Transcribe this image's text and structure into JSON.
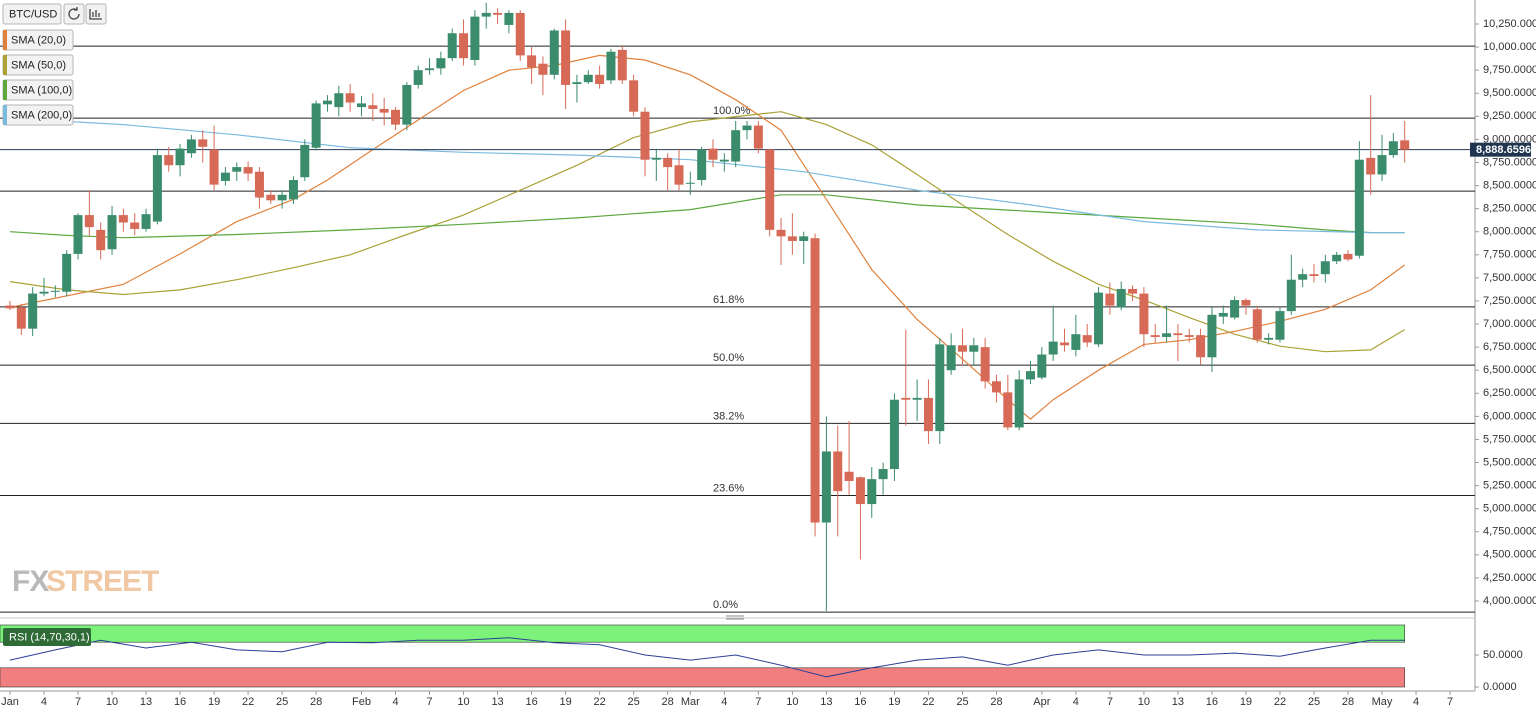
{
  "chart_data": [
    {
      "type": "candlestick",
      "title": "BTC/USD",
      "up_color": "#3b8c6c",
      "down_color": "#d76a56",
      "xlim": [
        -0.88,
        129.2
      ],
      "xticks": [
        {
          "value": 0,
          "label": "Jan"
        },
        {
          "value": 3,
          "label": "4"
        },
        {
          "value": 6,
          "label": "7"
        },
        {
          "value": 9,
          "label": "10"
        },
        {
          "value": 12,
          "label": "13"
        },
        {
          "value": 15,
          "label": "16"
        },
        {
          "value": 18,
          "label": "19"
        },
        {
          "value": 21,
          "label": "22"
        },
        {
          "value": 24,
          "label": "25"
        },
        {
          "value": 27,
          "label": "28"
        },
        {
          "value": 31,
          "label": "Feb"
        },
        {
          "value": 34,
          "label": "4"
        },
        {
          "value": 37,
          "label": "7"
        },
        {
          "value": 40,
          "label": "10"
        },
        {
          "value": 43,
          "label": "13"
        },
        {
          "value": 46,
          "label": "16"
        },
        {
          "value": 49,
          "label": "19"
        },
        {
          "value": 52,
          "label": "22"
        },
        {
          "value": 55,
          "label": "25"
        },
        {
          "value": 58,
          "label": "28"
        },
        {
          "value": 60,
          "label": "Mar"
        },
        {
          "value": 63,
          "label": "4"
        },
        {
          "value": 66,
          "label": "7"
        },
        {
          "value": 69,
          "label": "10"
        },
        {
          "value": 72,
          "label": "13"
        },
        {
          "value": 75,
          "label": "16"
        },
        {
          "value": 78,
          "label": "19"
        },
        {
          "value": 81,
          "label": "22"
        },
        {
          "value": 84,
          "label": "25"
        },
        {
          "value": 87,
          "label": "28"
        },
        {
          "value": 91,
          "label": "Apr"
        },
        {
          "value": 94,
          "label": "4"
        },
        {
          "value": 97,
          "label": "7"
        },
        {
          "value": 100,
          "label": "10"
        },
        {
          "value": 103,
          "label": "13"
        },
        {
          "value": 106,
          "label": "16"
        },
        {
          "value": 109,
          "label": "19"
        },
        {
          "value": 112,
          "label": "22"
        },
        {
          "value": 115,
          "label": "25"
        },
        {
          "value": 118,
          "label": "28"
        },
        {
          "value": 121,
          "label": "May"
        },
        {
          "value": 124,
          "label": "4"
        },
        {
          "value": 127,
          "label": "7"
        }
      ],
      "ylim": [
        3870,
        10510
      ],
      "yticks": [
        {
          "value": 4000,
          "label": "4,000.0000"
        },
        {
          "value": 4250,
          "label": "4,250.0000"
        },
        {
          "value": 4500,
          "label": "4,500.0000"
        },
        {
          "value": 4750,
          "label": "4,750.0000"
        },
        {
          "value": 5000,
          "label": "5,000.0000"
        },
        {
          "value": 5250,
          "label": "5,250.0000"
        },
        {
          "value": 5500,
          "label": "5,500.0000"
        },
        {
          "value": 5750,
          "label": "5,750.0000"
        },
        {
          "value": 6000,
          "label": "6,000.0000"
        },
        {
          "value": 6250,
          "label": "6,250.0000"
        },
        {
          "value": 6500,
          "label": "6,500.0000"
        },
        {
          "value": 6750,
          "label": "6,750.0000"
        },
        {
          "value": 7000,
          "label": "7,000.0000"
        },
        {
          "value": 7250,
          "label": "7,250.0000"
        },
        {
          "value": 7500,
          "label": "7,500.0000"
        },
        {
          "value": 7750,
          "label": "7,750.0000"
        },
        {
          "value": 8000,
          "label": "8,000.0000"
        },
        {
          "value": 8250,
          "label": "8,250.0000"
        },
        {
          "value": 8500,
          "label": "8,500.0000"
        },
        {
          "value": 8750,
          "label": "8,750.0000"
        },
        {
          "value": 9000,
          "label": "9,000.0000"
        },
        {
          "value": 9250,
          "label": "9,250.0000"
        },
        {
          "value": 9500,
          "label": "9,500.0000"
        },
        {
          "value": 9750,
          "label": "9,750.0000"
        },
        {
          "value": 10000,
          "label": "10,000.0000"
        },
        {
          "value": 10250,
          "label": "10,250.0000"
        }
      ],
      "open": [
        7200,
        7180,
        6950,
        7330,
        7350,
        7350,
        7760,
        8180,
        8020,
        7810,
        8180,
        8100,
        8030,
        8110,
        8830,
        8720,
        8850,
        9000,
        8890,
        8550,
        8650,
        8700,
        8650,
        8400,
        8340,
        8350,
        8590,
        8910,
        9380,
        9350,
        9500,
        9350,
        9370,
        9330,
        9320,
        9160,
        9590,
        9750,
        9770,
        9880,
        10150,
        9860,
        10330,
        10370,
        10240,
        10370,
        9910,
        9820,
        9700,
        10180,
        9600,
        9620,
        9700,
        9640,
        9970,
        9640,
        9300,
        8780,
        8800,
        8720,
        8520,
        8560,
        8900,
        8760,
        8760,
        9100,
        9150,
        8890,
        8020,
        7950,
        7900,
        7930,
        4850,
        5620,
        5400,
        5340,
        5050,
        5320,
        5430,
        6200,
        6180,
        6200,
        5840,
        6500,
        6770,
        6700,
        6750,
        6380,
        6260,
        5880,
        6400,
        6420,
        6670,
        6800,
        6720,
        6880,
        6780,
        7330,
        7180,
        7380,
        7330,
        6880,
        6860,
        6900,
        6880,
        6880,
        6640,
        7080,
        7070,
        7260,
        7160,
        6830,
        6830,
        7140,
        7480,
        7540,
        7540,
        7680,
        7760,
        7740,
        8800,
        8620,
        8830,
        8990
      ],
      "high": [
        7250,
        7220,
        7400,
        7500,
        7420,
        7800,
        8200,
        8450,
        8100,
        8280,
        8250,
        8200,
        8250,
        8900,
        8920,
        8950,
        9050,
        9100,
        9150,
        8700,
        8750,
        8760,
        8700,
        8450,
        8450,
        8600,
        9000,
        9420,
        9480,
        9580,
        9600,
        9470,
        9500,
        9450,
        9350,
        9620,
        9800,
        9880,
        9950,
        10200,
        10300,
        10400,
        10480,
        10420,
        10400,
        10400,
        10000,
        9900,
        10200,
        10300,
        9700,
        9750,
        9800,
        9980,
        10020,
        9700,
        9350,
        8900,
        8850,
        8900,
        8650,
        8920,
        9000,
        8850,
        9200,
        9200,
        9200,
        8900,
        8150,
        8200,
        8000,
        7980,
        6000,
        5900,
        5950,
        5350,
        5450,
        5500,
        6250,
        6940,
        6400,
        6400,
        6850,
        6900,
        6950,
        6850,
        6850,
        6450,
        6450,
        6500,
        6600,
        6750,
        7200,
        6950,
        7100,
        7000,
        7400,
        7450,
        7460,
        7420,
        7400,
        7000,
        7200,
        7000,
        6950,
        6950,
        7180,
        7200,
        7300,
        7280,
        7200,
        6900,
        7180,
        7750,
        7600,
        7650,
        7750,
        7780,
        7800,
        8980,
        9480,
        9050,
        9070,
        9200
      ],
      "low": [
        7150,
        6880,
        6870,
        7300,
        7290,
        7300,
        7700,
        7950,
        7700,
        7750,
        8000,
        7960,
        8000,
        8080,
        8650,
        8600,
        8800,
        8750,
        8450,
        8500,
        8550,
        8550,
        8250,
        8300,
        8250,
        8300,
        8550,
        8880,
        9300,
        9250,
        9300,
        9250,
        9200,
        9150,
        9100,
        9100,
        9550,
        9700,
        9700,
        9850,
        9800,
        9800,
        10200,
        10250,
        10150,
        9850,
        9600,
        9480,
        9650,
        9330,
        9400,
        9600,
        9550,
        9600,
        9600,
        9250,
        8600,
        8550,
        8450,
        8450,
        8400,
        8500,
        8700,
        8650,
        8700,
        9000,
        8850,
        7950,
        7640,
        7750,
        7650,
        4700,
        3890,
        4700,
        5150,
        4450,
        4900,
        5150,
        5300,
        5900,
        5950,
        5700,
        5700,
        6450,
        6550,
        6550,
        6300,
        6150,
        5850,
        5850,
        6350,
        6400,
        6600,
        6700,
        6650,
        6750,
        6750,
        7100,
        7150,
        7250,
        6750,
        6800,
        6800,
        6600,
        6800,
        6560,
        6480,
        7000,
        7050,
        7100,
        6800,
        6780,
        6800,
        7100,
        7400,
        7450,
        7450,
        7650,
        7680,
        7710,
        8400,
        8550,
        8800,
        8750
      ],
      "close": [
        7170,
        6950,
        7330,
        7350,
        7360,
        7760,
        8180,
        8050,
        7800,
        8180,
        8100,
        8030,
        8190,
        8830,
        8720,
        8900,
        9000,
        8920,
        8510,
        8640,
        8700,
        8630,
        8370,
        8340,
        8400,
        8560,
        8940,
        9390,
        9420,
        9500,
        9400,
        9390,
        9330,
        9290,
        9160,
        9590,
        9750,
        9770,
        9880,
        10150,
        9880,
        10330,
        10370,
        10350,
        10370,
        9910,
        9780,
        9700,
        10180,
        9590,
        9620,
        9700,
        9600,
        9950,
        9640,
        9300,
        8780,
        8800,
        8700,
        8510,
        8530,
        8890,
        8780,
        8780,
        9100,
        9150,
        8900,
        8020,
        7950,
        7900,
        7950,
        4850,
        5620,
        5190,
        5300,
        5050,
        5320,
        5430,
        6180,
        6180,
        6200,
        5840,
        6780,
        6770,
        6700,
        6770,
        6380,
        6260,
        5880,
        6400,
        6490,
        6670,
        6810,
        6770,
        6890,
        6800,
        7340,
        7200,
        7380,
        7330,
        6890,
        6860,
        6900,
        6880,
        6860,
        6640,
        7100,
        7120,
        7260,
        7200,
        6830,
        6850,
        7140,
        7480,
        7540,
        7520,
        7680,
        7750,
        7700,
        8780,
        8620,
        8830,
        8980,
        8890
      ],
      "series": [
        {
          "name": "SMA (20,0)",
          "color": "#e0803c",
          "x": [
            0,
            10,
            15,
            20,
            25,
            28,
            32,
            36,
            40,
            44,
            48,
            52,
            56,
            60,
            64,
            68,
            72,
            76,
            80,
            84,
            88,
            90,
            92,
            96,
            100,
            104,
            108,
            112,
            116,
            120,
            123
          ],
          "values": [
            7180,
            7430,
            7760,
            8110,
            8350,
            8560,
            8890,
            9210,
            9530,
            9750,
            9800,
            9910,
            9860,
            9700,
            9430,
            9100,
            8350,
            7590,
            7050,
            6620,
            6180,
            5970,
            6180,
            6500,
            6780,
            6830,
            6920,
            7030,
            7160,
            7370,
            7640
          ]
        },
        {
          "name": "SMA (50,0)",
          "color": "#aaa236",
          "x": [
            0,
            5,
            10,
            15,
            20,
            25,
            30,
            35,
            40,
            45,
            50,
            55,
            60,
            65,
            68,
            72,
            76,
            80,
            84,
            88,
            92,
            96,
            100,
            104,
            108,
            112,
            116,
            120,
            123
          ],
          "values": [
            7460,
            7370,
            7320,
            7370,
            7480,
            7610,
            7750,
            7970,
            8180,
            8450,
            8720,
            9020,
            9190,
            9260,
            9300,
            9160,
            8940,
            8620,
            8290,
            7970,
            7680,
            7430,
            7260,
            7070,
            6890,
            6760,
            6700,
            6720,
            6940
          ]
        },
        {
          "name": "SMA (100,0)",
          "color": "#5ca83e",
          "x": [
            0,
            5,
            10,
            20,
            30,
            40,
            50,
            60,
            68,
            72,
            80,
            90,
            100,
            110,
            116,
            120,
            123
          ],
          "values": [
            8000,
            7960,
            7935,
            7970,
            8020,
            8080,
            8150,
            8240,
            8400,
            8400,
            8290,
            8220,
            8150,
            8080,
            8020,
            7990,
            7990
          ]
        },
        {
          "name": "SMA (200,0)",
          "color": "#7cbbe0",
          "x": [
            0,
            10,
            20,
            30,
            40,
            50,
            60,
            70,
            80,
            90,
            100,
            110,
            120,
            123
          ],
          "values": [
            9230,
            9160,
            9050,
            8910,
            8860,
            8830,
            8780,
            8650,
            8450,
            8290,
            8110,
            8020,
            7990,
            7990
          ]
        }
      ],
      "hlines": [
        10010,
        8440
      ],
      "levels": [
        {
          "value": 9230,
          "label": "100.0%"
        },
        {
          "value": 7186,
          "label": "61.8%"
        },
        {
          "value": 6555,
          "label": "50.0%"
        },
        {
          "value": 5924,
          "label": "38.2%"
        },
        {
          "value": 5143,
          "label": "23.6%"
        },
        {
          "value": 3880,
          "label": "0.0%"
        }
      ],
      "last_price": {
        "value": 8888.6596,
        "label": "8,888.6596"
      },
      "watermark": {
        "first": "FX",
        "second": "STREET"
      }
    },
    {
      "type": "line",
      "title": "RSI (14,70,30,1)",
      "ylim": [
        0,
        100
      ],
      "yticks": [
        {
          "value": 50,
          "label": "50.0000"
        },
        {
          "value": 0,
          "label": "0.0000"
        }
      ],
      "overbought": 70,
      "oversold": 30,
      "series": [
        {
          "color": "#2c3f96",
          "x": [
            0,
            4,
            8,
            12,
            16,
            20,
            24,
            28,
            32,
            36,
            40,
            44,
            48,
            52,
            56,
            60,
            64,
            68,
            72,
            76,
            80,
            84,
            88,
            92,
            96,
            100,
            104,
            108,
            112,
            116,
            120,
            123
          ],
          "values": [
            42,
            58,
            73,
            61,
            70,
            58,
            55,
            70,
            69,
            73,
            73,
            77,
            69,
            66,
            50,
            42,
            50,
            34,
            16,
            30,
            42,
            47,
            34,
            50,
            58,
            50,
            50,
            53,
            48,
            61,
            73,
            73
          ]
        }
      ]
    }
  ]
}
